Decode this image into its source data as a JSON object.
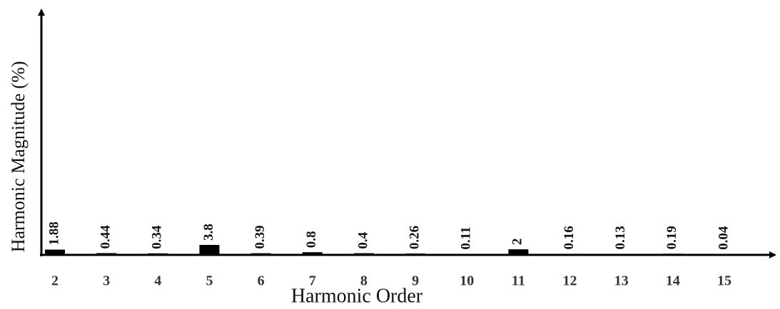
{
  "chart_data": {
    "type": "bar",
    "x_label": "Harmonic Order",
    "y_label": "Harmonic Magnitude (%)",
    "categories": [
      "2",
      "3",
      "4",
      "5",
      "6",
      "7",
      "8",
      "9",
      "10",
      "11",
      "12",
      "13",
      "14",
      "15"
    ],
    "values": [
      1.88,
      0.44,
      0.34,
      3.8,
      0.39,
      0.8,
      0.4,
      0.26,
      0.11,
      2,
      0.16,
      0.13,
      0.19,
      0.04
    ],
    "color": "#000000",
    "ylim": [
      0,
      100
    ]
  }
}
